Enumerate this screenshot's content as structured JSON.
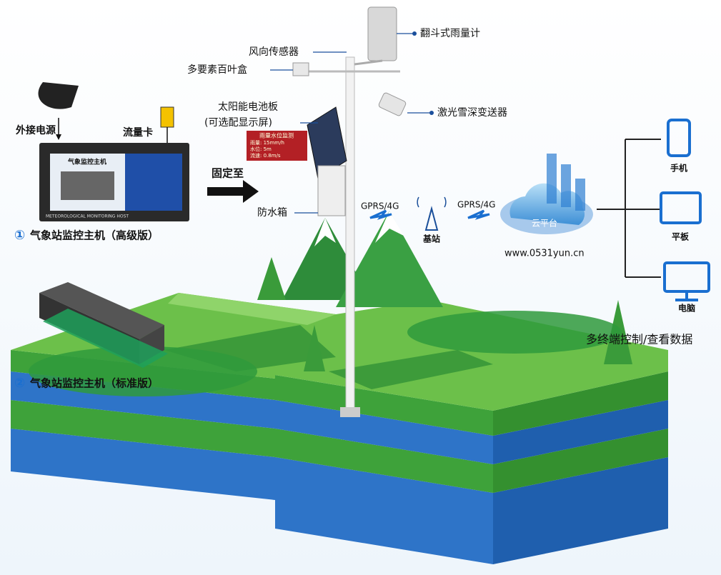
{
  "sensors": {
    "rain_gauge": "翻斗式雨量计",
    "wind_direction": "风向传感器",
    "louver_box": "多要素百叶盒",
    "solar_panel": "太阳能电池板",
    "solar_panel_note": "(可选配显示屏)",
    "snow_depth": "激光雪深变送器",
    "waterproof_box": "防水箱"
  },
  "display": {
    "title": "雨量水位监测",
    "rows": [
      "雨量: 15mm/h",
      "水位: 5m",
      "流速: 0.8m/s"
    ]
  },
  "host_advanced": {
    "number": "①",
    "label": "气象站监控主机（高级版）",
    "power": "外接电源",
    "sim": "流量卡",
    "device_title": "气象监控主机",
    "device_subtitle": "METEOROLOGICAL MONITORING HOST"
  },
  "host_standard": {
    "number": "②",
    "label": "气象站监控主机（标准版）"
  },
  "fix_to": "固定至",
  "network": {
    "link_1": "GPRS/4G",
    "base_station": "基站",
    "link_2": "GPRS/4G",
    "cloud": "云平台",
    "url": "www.0531yun.cn"
  },
  "terminals": {
    "items": [
      "手机",
      "平板",
      "电脑"
    ],
    "caption": "多终端控制/查看数据"
  }
}
